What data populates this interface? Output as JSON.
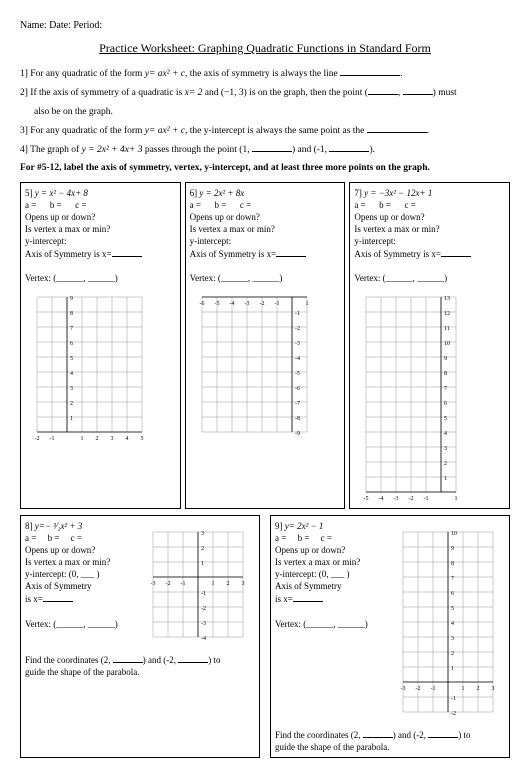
{
  "header": {
    "name": "Name:",
    "date": "Date:",
    "period": "Period:"
  },
  "title": "Practice Worksheet: Graphing Quadratic Functions in Standard Form",
  "q1": {
    "num": "1]",
    "pre": "For any quadratic of the form ",
    "eq": "y= ax² + c",
    "post": ", the axis of symmetry is always the line "
  },
  "q2": {
    "num": "2]",
    "pre": "If the axis of symmetry of a quadratic is ",
    "eq": "x= 2",
    "mid": " and (−1, 3) is on the graph, then the point (",
    "comma": ", ",
    "post": ") must",
    "line2": "also be on the graph."
  },
  "q3": {
    "num": "3]",
    "pre": "For any quadratic of the form ",
    "eq": "y= ax² + c",
    "post": ", the y-intercept is always the same point as the "
  },
  "q4": {
    "num": "4]",
    "pre": "The graph of ",
    "eq": "y = 2x² + 4x+ 3",
    "mid": " passes through the point (1, ",
    "and": ") and (-1, ",
    "post": ")."
  },
  "instruction": "For #5-12, label the axis of symmetry, vertex, y-intercept, and at least three more points on the graph.",
  "labels": {
    "a": "a =",
    "b": "b =",
    "c": "c =",
    "opens": "Opens up or down?",
    "vertexmm": "Is vertex a max or min?",
    "yint": "y-intercept:",
    "yint0": "y-intercept: (0, ___ )",
    "axis": "Axis of Symmetry is x=",
    "axisShort": "Axis of Symmetry",
    "isx": "is x=",
    "vertex": "Vertex: (______, ______)"
  },
  "p5": {
    "num": "5]",
    "eq": "y = x² − 4x+ 8"
  },
  "p6": {
    "num": "6]",
    "eq": "y = 2x² + 8x"
  },
  "p7": {
    "num": "7]",
    "eq": "y = −3x² − 12x+ 1"
  },
  "p8": {
    "num": "8]",
    "eq": "y=− ³⁄₂x² + 3",
    "find_a": "Find the coordinates (2, ",
    "find_b": ") and (-2, ",
    "find_c": ") to",
    "guide": "guide the shape of the parabola."
  },
  "p9": {
    "num": "9]",
    "eq": "y= 2x² − 1",
    "find_a": "Find the coordinates (2, ",
    "find_b": ") and (-2, ",
    "find_c": ") to",
    "guide": "guide the shape of the parabola."
  },
  "grids": {
    "g5": {
      "xmin": -2,
      "xmax": 5,
      "ymin": 0,
      "ymax": 9
    },
    "g6": {
      "xmin": -6,
      "xmax": 1,
      "ymin": -9,
      "ymax": 0
    },
    "g7": {
      "xmin": -5,
      "xmax": 1,
      "ymin": 0,
      "ymax": 13
    },
    "g8": {
      "xmin": -3,
      "xmax": 3,
      "ymin": -4,
      "ymax": 3
    },
    "g9": {
      "xmin": -3,
      "xmax": 3,
      "ymin": -2,
      "ymax": 10
    }
  },
  "style": {
    "gridColor": "#999999",
    "axisColor": "#000000",
    "labelColor": "#000000",
    "gridWidth": 0.5,
    "axisWidth": 0.8,
    "cellSize": 15,
    "labelFontSize": 6
  }
}
